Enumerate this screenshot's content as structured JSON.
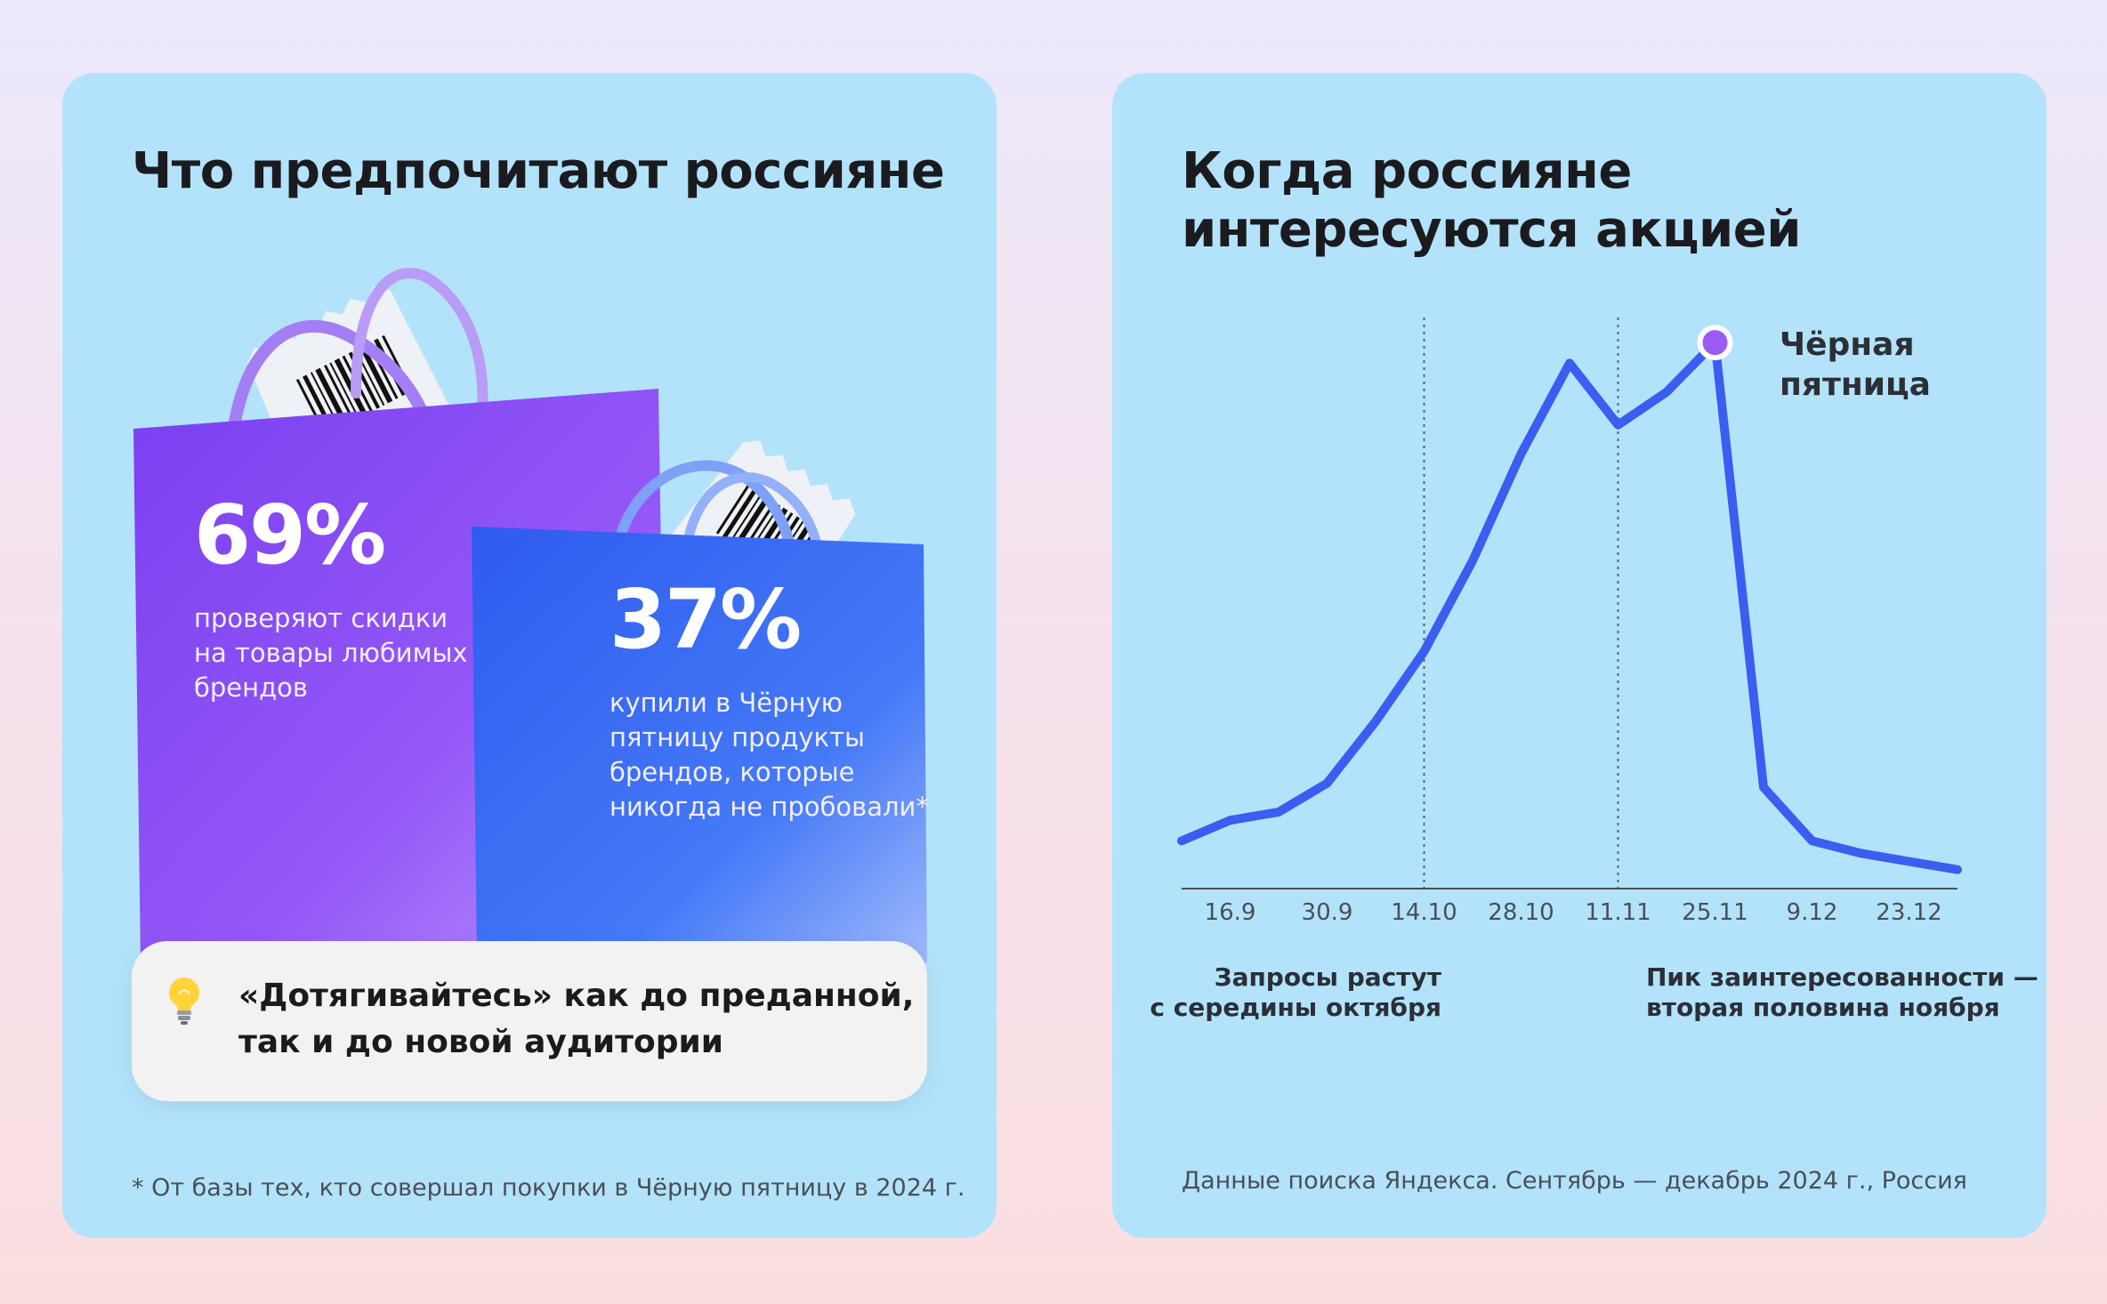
{
  "left_card": {
    "title": "Что предпочитают россияне",
    "stat1": {
      "value": "69%",
      "text": "проверяют скидки\nна товары любимых\nбрендов"
    },
    "stat2": {
      "value": "37%",
      "text": "купили в Чёрную\nпятницу продукты\nбрендов, которые\nникогда не пробовали*"
    },
    "tip": {
      "icon": "lightbulb-icon",
      "text": "«Дотягивайтесь» как до преданной,\nтак и до новой аудитории"
    },
    "footnote": "* От базы тех, кто совершал покупки в Чёрную пятницу в 2024 г."
  },
  "right_card": {
    "title": "Когда россияне\nинтересуются акцией",
    "peak_label": "Чёрная\nпятница",
    "note_left": "Запросы растут\nс середины октября",
    "note_right": "Пик заинтересованности —\nвторая половина ноября",
    "footnote": "Данные поиска Яндекса. Сентябрь — декабрь 2024 г., Россия"
  },
  "colors": {
    "card_bg": "#b3e3fb",
    "line": "#3a5ef0",
    "peak_marker": "#9a5cf5",
    "bag_purple": "#8a4ff4",
    "bag_blue": "#3c6cf4"
  },
  "chart_data": {
    "type": "line",
    "title": "Когда россияне интересуются акцией",
    "xlabel": "",
    "ylabel": "",
    "grid": false,
    "x": [
      0,
      1,
      2,
      3,
      4,
      5,
      6,
      7,
      8,
      9,
      10,
      11,
      12,
      13,
      14,
      15,
      16
    ],
    "categories": [
      "16.9",
      "30.9",
      "14.10",
      "28.10",
      "11.11",
      "25.11",
      "9.12",
      "23.12"
    ],
    "tick_positions": [
      1,
      3,
      5,
      7,
      9,
      11,
      13,
      15
    ],
    "series": [
      {
        "values": [
          4,
          9,
          11,
          18,
          33,
          50,
          72,
          98,
          120,
          105,
          113,
          125,
          17,
          4,
          1,
          -1,
          -3
        ]
      }
    ],
    "ylim": [
      -5,
      130
    ],
    "vlines": [
      5,
      9
    ],
    "highlight": {
      "x": 11,
      "label": "Чёрная пятница"
    }
  }
}
